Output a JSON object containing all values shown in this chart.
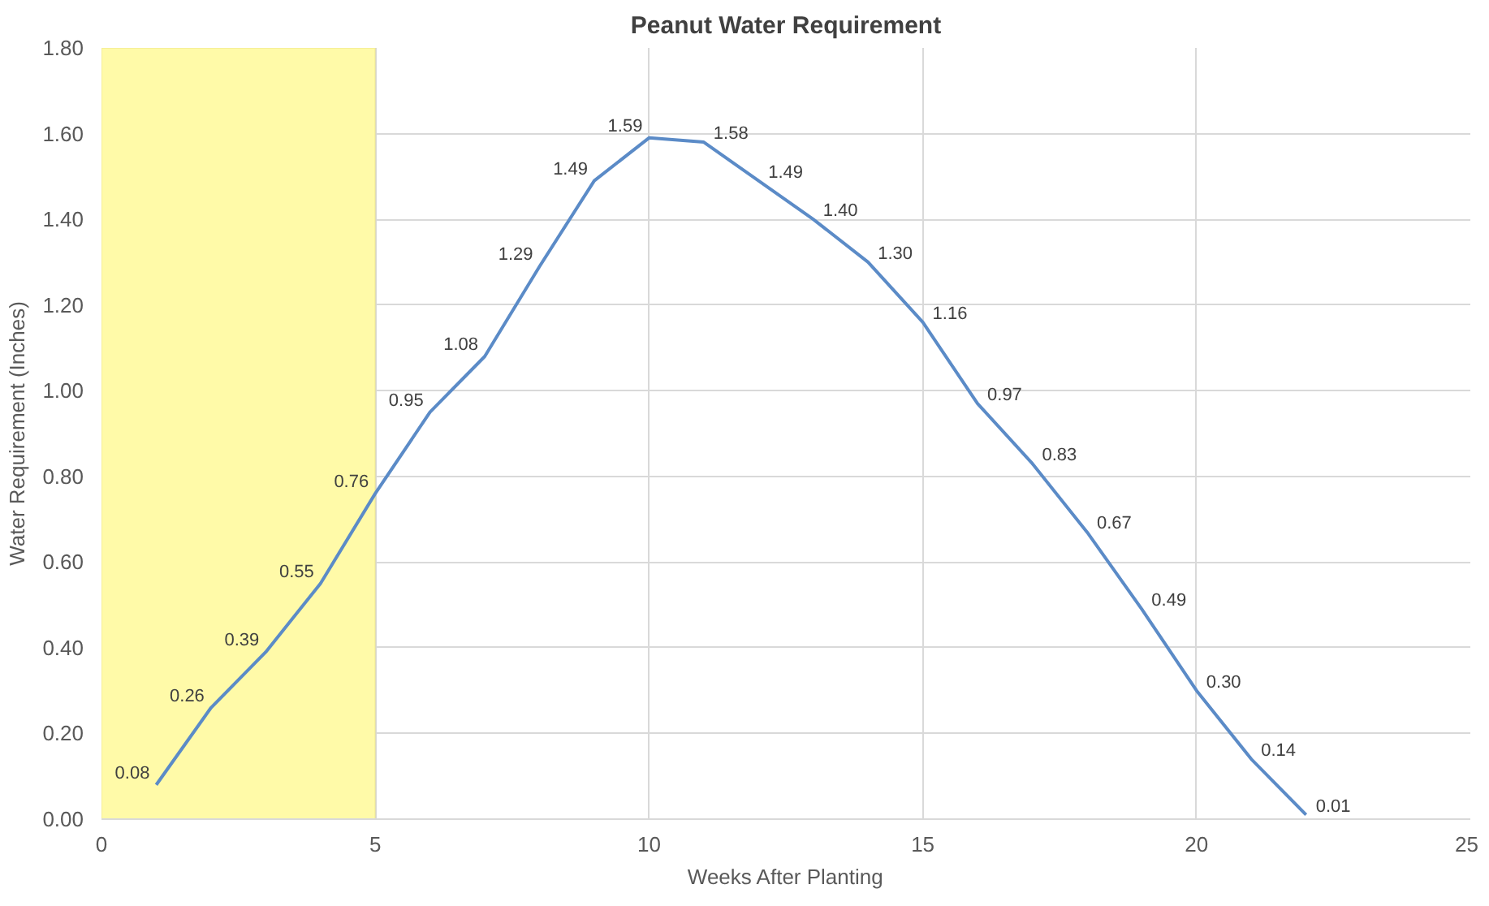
{
  "chart_data": {
    "type": "line",
    "title": "Peanut Water Requirement",
    "xlabel": "Weeks After Planting",
    "ylabel": "Water Requirement (Inches)",
    "x": [
      1,
      2,
      3,
      4,
      5,
      6,
      7,
      8,
      9,
      10,
      11,
      12,
      13,
      14,
      15,
      16,
      17,
      18,
      19,
      20,
      21,
      22
    ],
    "series": [
      {
        "color": "#5b8bc7",
        "values": [
          0.08,
          0.26,
          0.39,
          0.55,
          0.76,
          0.95,
          1.08,
          1.29,
          1.49,
          1.59,
          1.58,
          1.49,
          1.4,
          1.3,
          1.16,
          0.97,
          0.83,
          0.67,
          0.49,
          0.3,
          0.14,
          0.01
        ]
      }
    ],
    "value_labels": [
      "0.08",
      "0.26",
      "0.39",
      "0.55",
      "0.76",
      "0.95",
      "1.08",
      "1.29",
      "1.49",
      "1.59",
      "1.58",
      "1.49",
      "1.40",
      "1.30",
      "1.16",
      "0.97",
      "0.83",
      "0.67",
      "0.49",
      "0.30",
      "0.14",
      "0.01"
    ],
    "xlim": [
      0,
      25
    ],
    "xticks": [
      0,
      5,
      10,
      15,
      20,
      25
    ],
    "ylim": [
      0,
      1.8
    ],
    "yticks": [
      {
        "value": 0,
        "label": "0.00"
      },
      {
        "value": 0.2,
        "label": "0.20"
      },
      {
        "value": 0.4,
        "label": "0.40"
      },
      {
        "value": 0.6,
        "label": "0.60"
      },
      {
        "value": 0.8,
        "label": "0.80"
      },
      {
        "value": 1.0,
        "label": "1.00"
      },
      {
        "value": 1.2,
        "label": "1.20"
      },
      {
        "value": 1.4,
        "label": "1.40"
      },
      {
        "value": 1.6,
        "label": "1.60"
      },
      {
        "value": 1.8,
        "label": "1.80"
      }
    ],
    "bands": [
      {
        "axis": "x",
        "from": 0,
        "to": 5,
        "color": "#fffaa8"
      }
    ],
    "grid": true,
    "marker": "none",
    "line_style": "solid"
  }
}
